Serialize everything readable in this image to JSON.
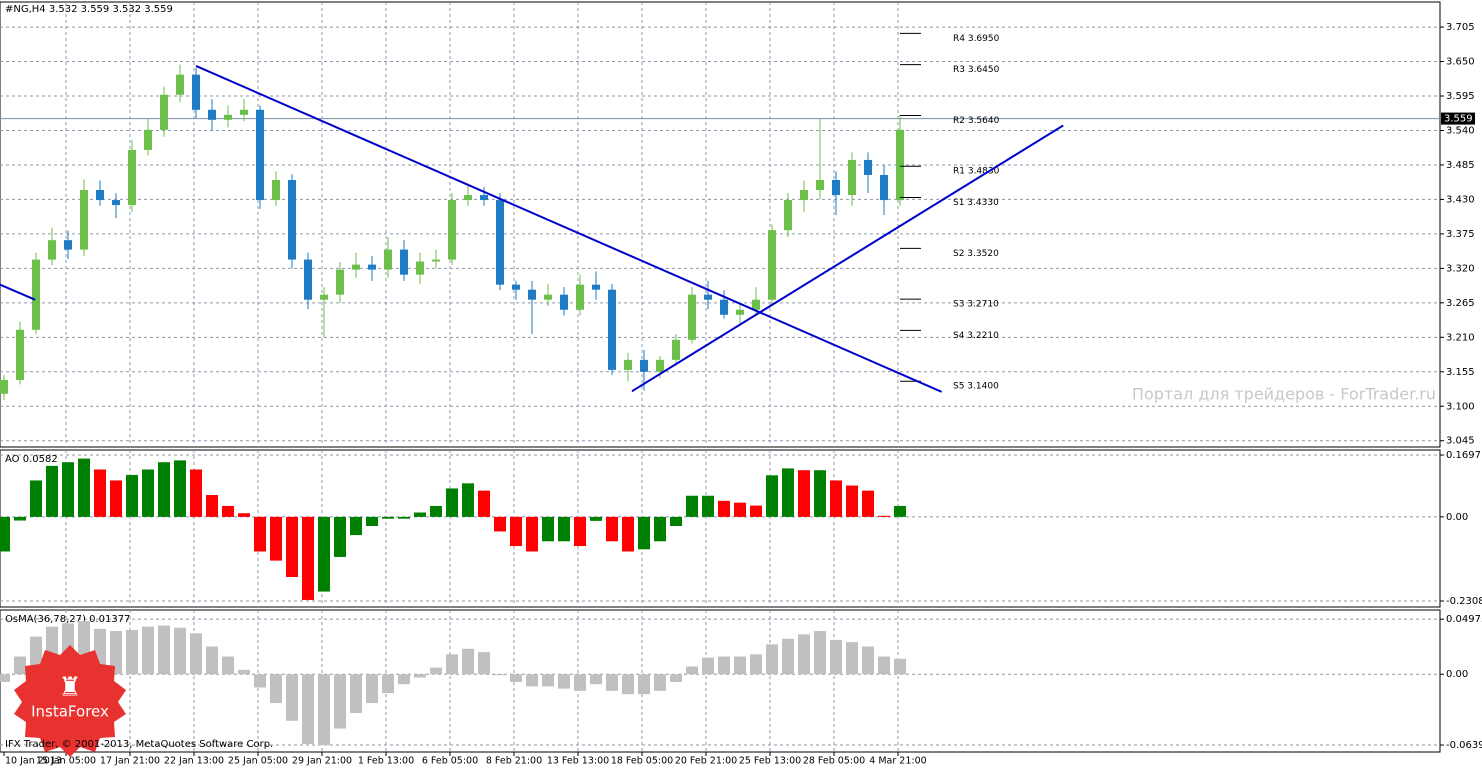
{
  "header": "#NG,H4  3.532 3.559 3.532 3.559",
  "watermark": "Портал для трейдеров - ForTrader.ru",
  "footer": "IFX Trader, © 2001-2013, MetaQuotes Software Corp.",
  "logo": "InstaForex",
  "chart_data": [
    {
      "type": "candlestick",
      "title": "#NG,H4  3.532 3.559 3.532 3.559",
      "open": [
        3.12,
        3.142,
        3.222,
        3.334,
        3.365,
        3.35,
        3.445,
        3.429,
        3.421,
        3.509,
        3.541,
        3.597,
        3.629,
        3.573,
        3.557,
        3.565,
        3.573,
        3.429,
        3.461,
        3.334,
        3.27,
        3.278,
        3.318,
        3.326,
        3.318,
        3.35,
        3.31,
        3.331,
        3.334,
        3.429,
        3.437,
        3.429,
        3.294,
        3.286,
        3.27,
        3.278,
        3.254,
        3.294,
        3.286,
        3.158,
        3.174,
        3.155,
        3.174,
        3.206,
        3.278,
        3.27,
        3.246,
        3.254,
        3.27,
        3.381,
        3.429,
        3.445,
        3.461,
        3.437,
        3.493,
        3.469,
        3.429
      ],
      "high": [
        3.15,
        3.235,
        3.345,
        3.385,
        3.38,
        3.462,
        3.46,
        3.44,
        3.525,
        3.56,
        3.61,
        3.645,
        3.64,
        3.59,
        3.58,
        3.59,
        3.58,
        3.475,
        3.47,
        3.345,
        3.29,
        3.33,
        3.345,
        3.34,
        3.37,
        3.365,
        3.345,
        3.35,
        3.44,
        3.455,
        3.45,
        3.44,
        3.3,
        3.3,
        3.295,
        3.29,
        3.31,
        3.315,
        3.295,
        3.185,
        3.19,
        3.18,
        3.215,
        3.29,
        3.3,
        3.285,
        3.265,
        3.29,
        3.39,
        3.44,
        3.46,
        3.56,
        3.475,
        3.505,
        3.505,
        3.485,
        3.565
      ],
      "low": [
        3.11,
        3.135,
        3.215,
        3.325,
        3.335,
        3.34,
        3.42,
        3.4,
        3.41,
        3.5,
        3.53,
        3.585,
        3.56,
        3.54,
        3.545,
        3.555,
        3.415,
        3.42,
        3.32,
        3.255,
        3.21,
        3.265,
        3.305,
        3.3,
        3.305,
        3.3,
        3.295,
        3.32,
        3.325,
        3.42,
        3.42,
        3.285,
        3.27,
        3.215,
        3.26,
        3.245,
        3.245,
        3.27,
        3.15,
        3.14,
        3.125,
        3.145,
        3.165,
        3.2,
        3.255,
        3.24,
        3.23,
        3.245,
        3.26,
        3.37,
        3.41,
        3.43,
        3.405,
        3.42,
        3.44,
        3.405,
        3.42
      ],
      "close": [
        3.142,
        3.222,
        3.334,
        3.365,
        3.35,
        3.445,
        3.429,
        3.421,
        3.509,
        3.541,
        3.597,
        3.629,
        3.573,
        3.557,
        3.565,
        3.573,
        3.429,
        3.461,
        3.334,
        3.27,
        3.278,
        3.318,
        3.326,
        3.318,
        3.35,
        3.31,
        3.331,
        3.334,
        3.429,
        3.437,
        3.429,
        3.294,
        3.286,
        3.27,
        3.278,
        3.254,
        3.294,
        3.286,
        3.158,
        3.174,
        3.155,
        3.174,
        3.206,
        3.278,
        3.27,
        3.246,
        3.254,
        3.27,
        3.381,
        3.429,
        3.445,
        3.461,
        3.437,
        3.493,
        3.469,
        3.429,
        3.541
      ],
      "up_color": "#6cbf4a",
      "down_color": "#1e7bc4",
      "xlim": [
        -0.25,
        89.75
      ],
      "xticks": [
        {
          "value": 0,
          "label": "10 Jan 2013"
        },
        {
          "value": 3.875,
          "label": "15 Jan 05:00"
        },
        {
          "value": 7.875,
          "label": "17 Jan 21:00"
        },
        {
          "value": 11.875,
          "label": "22 Jan 13:00"
        },
        {
          "value": 15.875,
          "label": "25 Jan 05:00"
        },
        {
          "value": 19.875,
          "label": "29 Jan 21:00"
        },
        {
          "value": 23.875,
          "label": "1 Feb 13:00"
        },
        {
          "value": 27.875,
          "label": "6 Feb 05:00"
        },
        {
          "value": 31.875,
          "label": "8 Feb 21:00"
        },
        {
          "value": 35.875,
          "label": "13 Feb 13:00"
        },
        {
          "value": 39.875,
          "label": "18 Feb 05:00"
        },
        {
          "value": 43.875,
          "label": "20 Feb 21:00"
        },
        {
          "value": 47.875,
          "label": "25 Feb 13:00"
        },
        {
          "value": 51.875,
          "label": "28 Feb 05:00"
        },
        {
          "value": 55.875,
          "label": "4 Mar 21:00"
        }
      ],
      "ylim": [
        3.035,
        3.745
      ],
      "yticks": [
        3.705,
        {
          "value": 3.65,
          "label": "3.650"
        },
        3.595,
        {
          "value": 3.54,
          "label": "3.540"
        },
        3.485,
        {
          "value": 3.43,
          "label": "3.430"
        },
        3.375,
        {
          "value": 3.32,
          "label": "3.320"
        },
        3.265,
        {
          "value": 3.21,
          "label": "3.210"
        },
        3.155,
        {
          "value": 3.1,
          "label": "3.100"
        },
        3.045
      ],
      "grid": true,
      "current_price": {
        "value": 3.559,
        "label": "3.559"
      },
      "pivots": [
        {
          "label": "R4 3.6950",
          "value": 3.695
        },
        {
          "label": "R3 3.6450",
          "value": 3.645
        },
        {
          "label": "R2 3.5640",
          "value": 3.564
        },
        {
          "label": "R1 3.4830",
          "value": 3.483
        },
        {
          "label": "S1 3.4330",
          "value": 3.433
        },
        {
          "label": "S2 3.3520",
          "value": 3.352
        },
        {
          "label": "S3 3.2710",
          "value": 3.271
        },
        {
          "label": "S4 3.2210",
          "value": 3.221
        },
        {
          "label": "S5 3.1400",
          "value": 3.14
        }
      ],
      "trendline_color": "#0000cc",
      "trendlines": [
        {
          "x": [
            -0.25,
            1.94
          ],
          "y": [
            3.294,
            3.27
          ]
        },
        {
          "x": [
            12,
            58.6
          ],
          "y": [
            3.643,
            3.123
          ]
        },
        {
          "x": [
            39.25,
            66.2
          ],
          "y": [
            3.124,
            3.548
          ]
        }
      ]
    },
    {
      "type": "histogram",
      "title": "AO 0.0582",
      "values": [
        -0.095,
        -0.01,
        0.1,
        0.14,
        0.15,
        0.16,
        0.13,
        0.1,
        0.115,
        0.13,
        0.15,
        0.155,
        0.13,
        0.06,
        0.03,
        0.01,
        -0.095,
        -0.12,
        -0.165,
        -0.228,
        -0.205,
        -0.11,
        -0.05,
        -0.025,
        -0.005,
        -0.005,
        0.012,
        0.03,
        0.078,
        0.092,
        0.072,
        -0.04,
        -0.08,
        -0.095,
        -0.067,
        -0.067,
        -0.08,
        -0.011,
        -0.067,
        -0.095,
        -0.089,
        -0.067,
        -0.025,
        0.058,
        0.058,
        0.044,
        0.039,
        0.031,
        0.114,
        0.133,
        0.128,
        0.128,
        0.1,
        0.086,
        0.072,
        0.003,
        0.03
      ],
      "up_color": "#008000",
      "down_color": "#ff0000",
      "ylim": [
        -0.2473,
        0.1835
      ],
      "yticks": [
        0.1697,
        {
          "value": 0,
          "label": "0.00"
        },
        -0.2308
      ],
      "grid": true
    },
    {
      "type": "histogram",
      "title": "OsMA(36,78,27) 0.01377",
      "values": [
        -0.007,
        0.016,
        0.034,
        0.043,
        0.046,
        0.048,
        0.041,
        0.039,
        0.04,
        0.043,
        0.044,
        0.042,
        0.037,
        0.025,
        0.016,
        0.004,
        -0.012,
        -0.026,
        -0.042,
        -0.063,
        -0.064,
        -0.049,
        -0.035,
        -0.026,
        -0.017,
        -0.009,
        -0.003,
        0.006,
        0.018,
        0.023,
        0.02,
        0,
        -0.007,
        -0.011,
        -0.011,
        -0.013,
        -0.015,
        -0.009,
        -0.015,
        -0.018,
        -0.018,
        -0.015,
        -0.007,
        0.007,
        0.015,
        0.016,
        0.016,
        0.018,
        0.027,
        0.032,
        0.036,
        0.039,
        0.031,
        0.029,
        0.025,
        0.016,
        0.014
      ],
      "color": "#c0c0c0",
      "ylim": [
        -0.0702,
        0.058
      ],
      "yticks": [
        0.04975,
        {
          "value": 0,
          "label": "0.00"
        },
        -0.0639
      ],
      "grid": true
    }
  ]
}
